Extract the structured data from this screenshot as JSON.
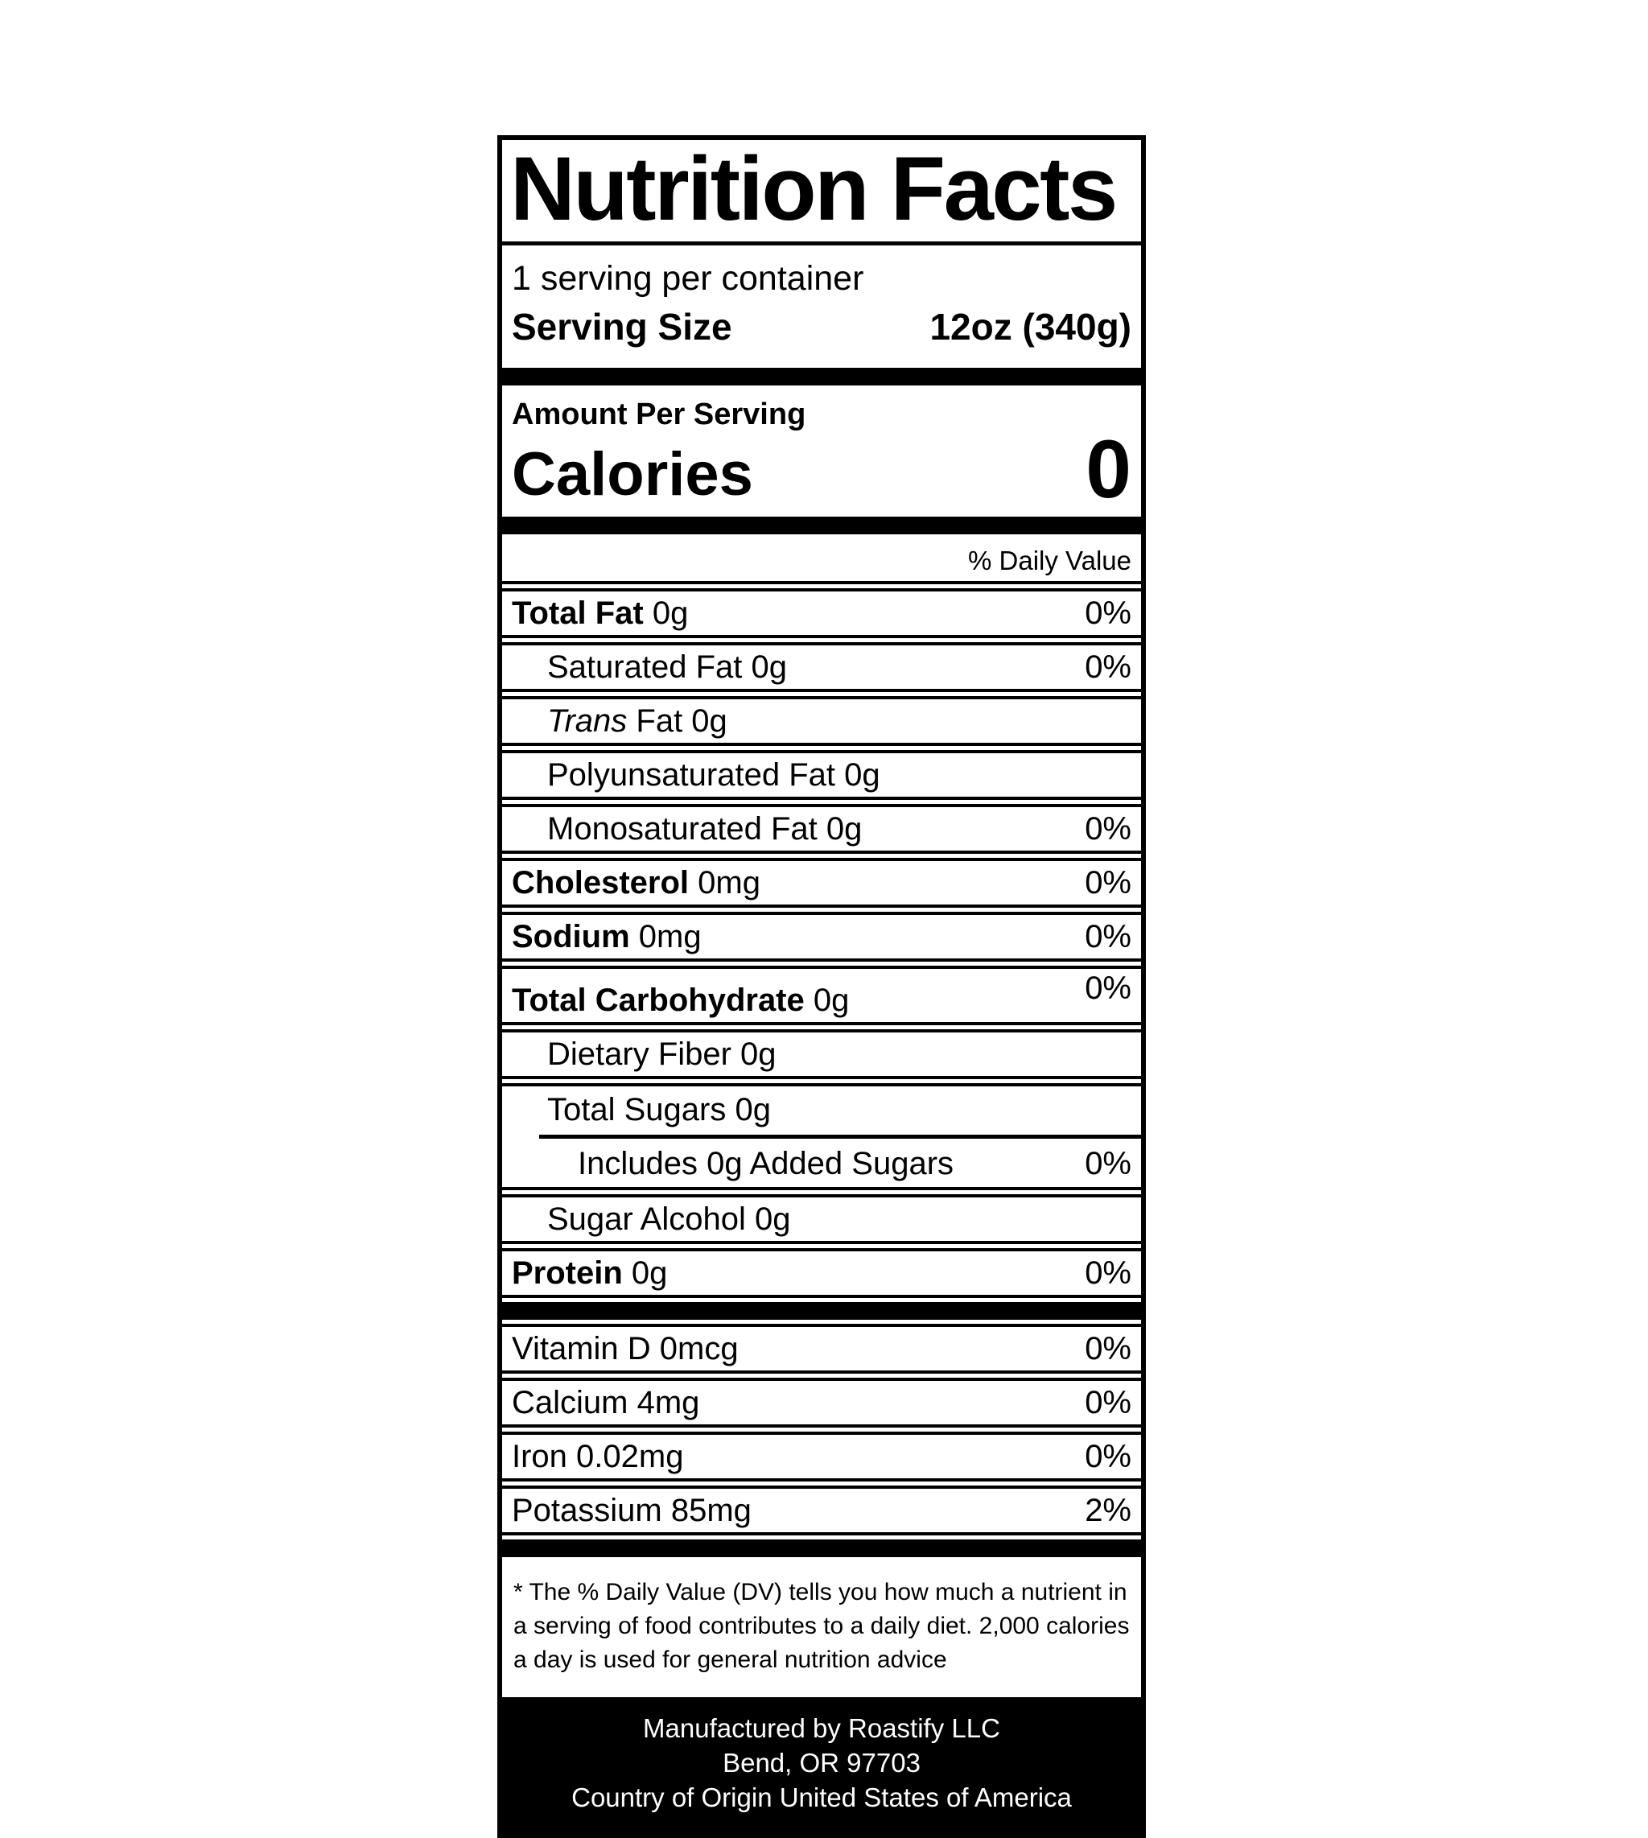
{
  "label": {
    "title": "Nutrition Facts",
    "servings_per_container": "1 serving per container",
    "serving_size_label": "Serving Size",
    "serving_size_value": "12oz (340g)",
    "amount_per_serving": "Amount Per Serving",
    "calories_label": "Calories",
    "calories_value": "0",
    "daily_value_header": "% Daily Value",
    "rows": [
      {
        "bold": "Total Fat",
        "text": " 0g",
        "value": "0%"
      },
      {
        "text": "Saturated Fat 0g",
        "value": "0%"
      },
      {
        "italic": "Trans",
        "text": " Fat 0g",
        "value": ""
      },
      {
        "text": "Polyunsaturated Fat 0g",
        "value": ""
      },
      {
        "text": "Monosaturated Fat 0g",
        "value": "0%"
      },
      {
        "bold": "Cholesterol",
        "text": " 0mg",
        "value": "0%"
      },
      {
        "bold": "Sodium",
        "text": " 0mg",
        "value": "0%"
      },
      {
        "bold": "Total Carbohydrate",
        "text": " 0g",
        "value": "0%"
      },
      {
        "text": "Dietary Fiber 0g",
        "value": ""
      },
      {
        "text": "Total Sugars 0g",
        "value": ""
      },
      {
        "text": "Includes 0g Added Sugars",
        "value": "0%"
      },
      {
        "text": "Sugar Alcohol 0g",
        "value": ""
      },
      {
        "bold": "Protein",
        "text": " 0g",
        "value": "0%"
      },
      {
        "text": "Vitamin D 0mcg",
        "value": "0%"
      },
      {
        "text": "Calcium 4mg",
        "value": "0%"
      },
      {
        "text": "Iron 0.02mg",
        "value": "0%"
      },
      {
        "text": "Potassium 85mg",
        "value": "2%"
      }
    ],
    "footnote": "* The % Daily Value (DV) tells you how much a nutrient in a serving of food contributes to a daily diet. 2,000 calories a day is used for general nutrition advice",
    "footer_lines": [
      "Manufactured by Roastify LLC",
      "Bend, OR 97703",
      "Country of Origin United States of America"
    ],
    "colors": {
      "ink": "#000000",
      "paper": "#ffffff"
    }
  }
}
